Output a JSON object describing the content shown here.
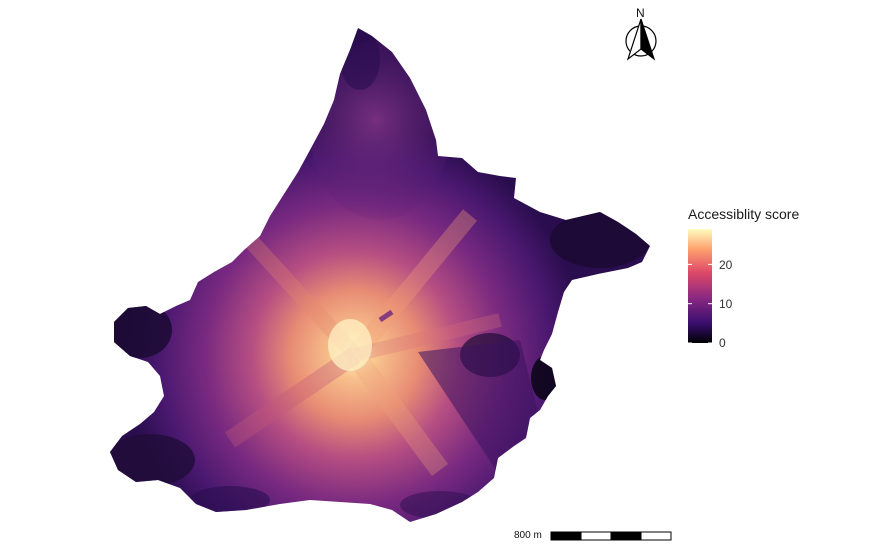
{
  "map": {
    "legend": {
      "title": "Accessiblity score",
      "ticks": [
        {
          "label": "20",
          "value": 20
        },
        {
          "label": "10",
          "value": 10
        },
        {
          "label": "0",
          "value": 0
        }
      ],
      "range": [
        0,
        29
      ],
      "palette": [
        "#000004",
        "#3b0f70",
        "#8c2981",
        "#de4968",
        "#fe9f6d",
        "#fcfdbf"
      ]
    },
    "scale_bar": {
      "label": "800 m",
      "segments": 4,
      "colors": [
        "#000000",
        "#ffffff"
      ]
    },
    "north_arrow": {
      "label": "N"
    },
    "surface": {
      "peak_score": 29,
      "colors": {
        "low": "#1a0b2e",
        "mid": "#5c1f78",
        "high": "#f6c08a"
      }
    }
  }
}
